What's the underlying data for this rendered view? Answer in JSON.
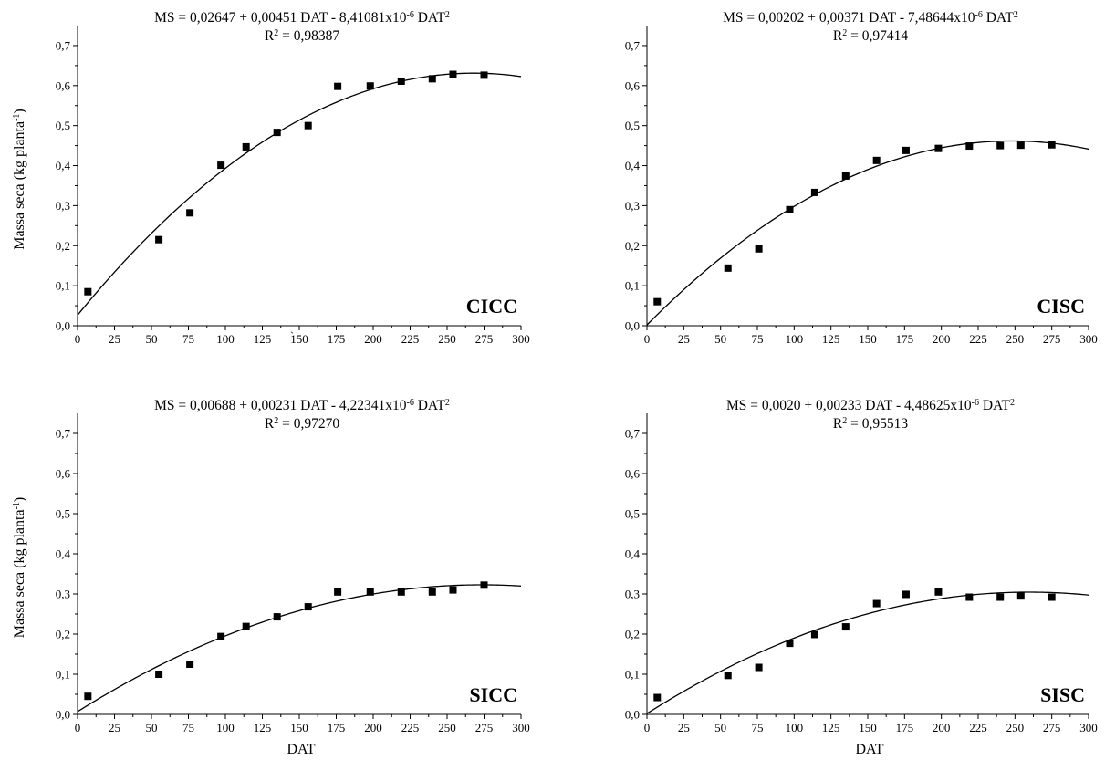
{
  "figure": {
    "stray_mark": "`"
  },
  "chart_data": [
    {
      "type": "scatter",
      "label": "CICC",
      "equation": "MS = 0,02647 + 0,00451 DAT - 8,41081x10-6 DAT2",
      "equation_parts": [
        "MS = 0,02647 + 0,00451 DAT - 8,41081x10",
        "-6",
        " DAT",
        "2"
      ],
      "r2_parts": [
        "R",
        "2",
        " = 0,98387"
      ],
      "coefficients": [
        0.02647,
        0.00451,
        -8.41081e-06
      ],
      "xlabel": "DAT",
      "ylabel_parts": [
        "Massa seca (kg planta",
        "-1",
        ")"
      ],
      "xlim": [
        0,
        300
      ],
      "ylim": [
        0,
        0.75
      ],
      "xticks": [
        0,
        25,
        50,
        75,
        100,
        125,
        150,
        175,
        200,
        225,
        250,
        275,
        300
      ],
      "yticks": [
        "0,0",
        "0,1",
        "0,2",
        "0,3",
        "0,4",
        "0,5",
        "0,6",
        "0,7"
      ],
      "show_xlabel": false,
      "show_ylabel": true,
      "points": [
        [
          7,
          0.085
        ],
        [
          55,
          0.215
        ],
        [
          76,
          0.282
        ],
        [
          97,
          0.401
        ],
        [
          114,
          0.447
        ],
        [
          135,
          0.483
        ],
        [
          156,
          0.5
        ],
        [
          176,
          0.598
        ],
        [
          198,
          0.599
        ],
        [
          219,
          0.611
        ],
        [
          240,
          0.617
        ],
        [
          254,
          0.628
        ],
        [
          275,
          0.626
        ]
      ]
    },
    {
      "type": "scatter",
      "label": "CISC",
      "equation": "MS = 0,00202 + 0,00371 DAT - 7,48644x10-6 DAT2",
      "equation_parts": [
        "MS = 0,00202 + 0,00371 DAT - 7,48644x10",
        "-6",
        " DAT",
        "2"
      ],
      "r2_parts": [
        "R",
        "2",
        " = 0,97414"
      ],
      "coefficients": [
        0.00202,
        0.00371,
        -7.48644e-06
      ],
      "xlabel": "DAT",
      "ylabel_parts": [
        "Massa seca (kg planta",
        "-1",
        ")"
      ],
      "xlim": [
        0,
        300
      ],
      "ylim": [
        0,
        0.75
      ],
      "xticks": [
        0,
        25,
        50,
        75,
        100,
        125,
        150,
        175,
        200,
        225,
        250,
        275,
        300
      ],
      "yticks": [
        "0,0",
        "0,1",
        "0,2",
        "0,3",
        "0,4",
        "0,5",
        "0,6",
        "0,7"
      ],
      "show_xlabel": false,
      "show_ylabel": false,
      "points": [
        [
          7,
          0.06
        ],
        [
          55,
          0.144
        ],
        [
          76,
          0.192
        ],
        [
          97,
          0.29
        ],
        [
          114,
          0.333
        ],
        [
          135,
          0.374
        ],
        [
          156,
          0.413
        ],
        [
          176,
          0.438
        ],
        [
          198,
          0.443
        ],
        [
          219,
          0.449
        ],
        [
          240,
          0.45
        ],
        [
          254,
          0.451
        ],
        [
          275,
          0.452
        ]
      ]
    },
    {
      "type": "scatter",
      "label": "SICC",
      "equation": "MS = 0,00688 + 0,00231 DAT - 4,22341x10-6 DAT2",
      "equation_parts": [
        "MS = 0,00688 + 0,00231 DAT - 4,22341x10",
        "-6",
        " DAT",
        "2"
      ],
      "r2_parts": [
        "R",
        "2",
        " = 0,97270"
      ],
      "coefficients": [
        0.00688,
        0.00231,
        -4.22341e-06
      ],
      "xlabel": "DAT",
      "ylabel_parts": [
        "Massa seca (kg planta",
        "-1",
        ")"
      ],
      "xlim": [
        0,
        300
      ],
      "ylim": [
        0,
        0.75
      ],
      "xticks": [
        0,
        25,
        50,
        75,
        100,
        125,
        150,
        175,
        200,
        225,
        250,
        275,
        300
      ],
      "yticks": [
        "0,0",
        "0,1",
        "0,2",
        "0,3",
        "0,4",
        "0,5",
        "0,6",
        "0,7"
      ],
      "show_xlabel": true,
      "show_ylabel": true,
      "points": [
        [
          7,
          0.045
        ],
        [
          55,
          0.1
        ],
        [
          76,
          0.125
        ],
        [
          97,
          0.194
        ],
        [
          114,
          0.219
        ],
        [
          135,
          0.243
        ],
        [
          156,
          0.268
        ],
        [
          176,
          0.305
        ],
        [
          198,
          0.305
        ],
        [
          219,
          0.305
        ],
        [
          240,
          0.305
        ],
        [
          254,
          0.31
        ],
        [
          275,
          0.322
        ]
      ]
    },
    {
      "type": "scatter",
      "label": "SISC",
      "equation": "MS = 0,0020 + 0,00233 DAT - 4,48625x10-6 DAT2",
      "equation_parts": [
        "MS = 0,0020 + 0,00233 DAT - 4,48625x10",
        "-6",
        " DAT",
        "2"
      ],
      "r2_parts": [
        "R",
        "2",
        " = 0,95513"
      ],
      "coefficients": [
        0.002,
        0.00233,
        -4.48625e-06
      ],
      "xlabel": "DAT",
      "ylabel_parts": [
        "Massa seca (kg planta",
        "-1",
        ")"
      ],
      "xlim": [
        0,
        300
      ],
      "ylim": [
        0,
        0.75
      ],
      "xticks": [
        0,
        25,
        50,
        75,
        100,
        125,
        150,
        175,
        200,
        225,
        250,
        275,
        300
      ],
      "yticks": [
        "0,0",
        "0,1",
        "0,2",
        "0,3",
        "0,4",
        "0,5",
        "0,6",
        "0,7"
      ],
      "show_xlabel": true,
      "show_ylabel": false,
      "points": [
        [
          7,
          0.042
        ],
        [
          55,
          0.097
        ],
        [
          76,
          0.117
        ],
        [
          97,
          0.177
        ],
        [
          114,
          0.199
        ],
        [
          135,
          0.218
        ],
        [
          156,
          0.276
        ],
        [
          176,
          0.299
        ],
        [
          198,
          0.305
        ],
        [
          219,
          0.292
        ],
        [
          240,
          0.292
        ],
        [
          254,
          0.295
        ],
        [
          275,
          0.292
        ]
      ]
    }
  ]
}
